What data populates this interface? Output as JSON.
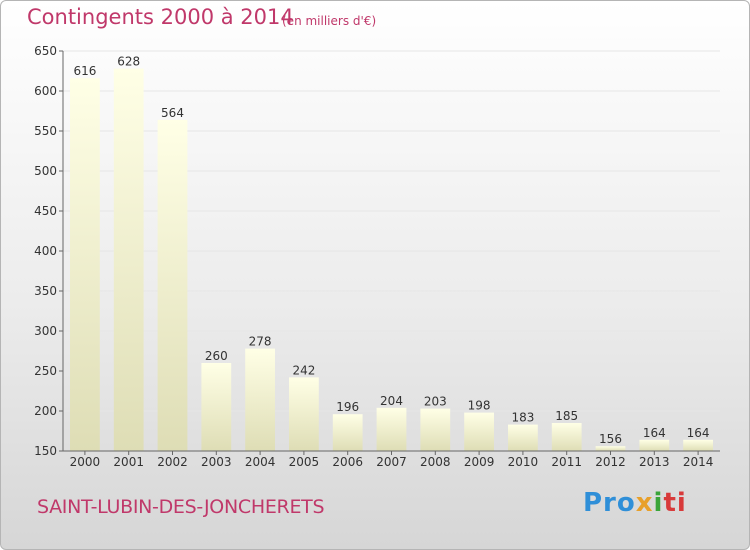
{
  "header": {
    "title": "Contingents 2000 à 2014",
    "subtitle": "(en milliers d'€)"
  },
  "footer": {
    "commune": "SAINT-LUBIN-DES-JONCHERETS",
    "logo": [
      "Pro",
      "x",
      "i",
      "ti"
    ]
  },
  "colors": {
    "accent": "#c0386a",
    "bar_top": "#ffffe6",
    "bar_bottom": "#deddb5",
    "grid": "#e6e6e6"
  },
  "chart_data": {
    "type": "bar",
    "title": "Contingents 2000 à 2014",
    "subtitle": "(en milliers d'€)",
    "categories": [
      "2000",
      "2001",
      "2002",
      "2003",
      "2004",
      "2005",
      "2006",
      "2007",
      "2008",
      "2009",
      "2010",
      "2011",
      "2012",
      "2013",
      "2014"
    ],
    "values": [
      616,
      628,
      564,
      260,
      278,
      242,
      196,
      204,
      203,
      198,
      183,
      185,
      156,
      164,
      164
    ],
    "ylim": [
      150,
      650
    ],
    "yticks": [
      150,
      200,
      250,
      300,
      350,
      400,
      450,
      500,
      550,
      600,
      650
    ],
    "grid": true,
    "xlabel": "",
    "ylabel": ""
  }
}
